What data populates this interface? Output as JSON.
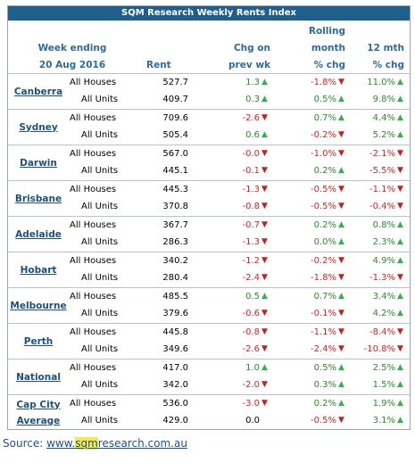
{
  "title": "SQM Research Weekly Rents Index",
  "headers": {
    "week_ending_1": "Week ending",
    "week_ending_2": "20 Aug 2016",
    "rent": "Rent",
    "chg_1": "Chg on",
    "chg_2": "prev wk",
    "rolling_1": "Rolling",
    "rolling_2": "month",
    "rolling_3": "% chg",
    "m12_1": "12 mth",
    "m12_2": "% chg"
  },
  "groups": [
    {
      "city": [
        "Canberra"
      ],
      "rows": [
        {
          "type": "All Houses",
          "rent": "527.7",
          "chg": "1.3",
          "chg_dir": "up",
          "roll": "-1.8%",
          "roll_dir": "down",
          "m12": "11.0%",
          "m12_dir": "up"
        },
        {
          "type": "All Units",
          "rent": "409.7",
          "chg": "0.3",
          "chg_dir": "up",
          "roll": "0.5%",
          "roll_dir": "up",
          "m12": "9.8%",
          "m12_dir": "up"
        }
      ]
    },
    {
      "city": [
        "Sydney"
      ],
      "rows": [
        {
          "type": "All Houses",
          "rent": "709.6",
          "chg": "-2.6",
          "chg_dir": "down",
          "roll": "0.7%",
          "roll_dir": "up",
          "m12": "4.4%",
          "m12_dir": "up"
        },
        {
          "type": "All Units",
          "rent": "505.4",
          "chg": "0.6",
          "chg_dir": "up",
          "roll": "-0.2%",
          "roll_dir": "down",
          "m12": "5.2%",
          "m12_dir": "up"
        }
      ]
    },
    {
      "city": [
        "Darwin"
      ],
      "rows": [
        {
          "type": "All Houses",
          "rent": "567.0",
          "chg": "-0.0",
          "chg_dir": "down",
          "roll": "-1.0%",
          "roll_dir": "down",
          "m12": "-2.1%",
          "m12_dir": "down"
        },
        {
          "type": "All Units",
          "rent": "445.1",
          "chg": "-0.1",
          "chg_dir": "down",
          "roll": "0.2%",
          "roll_dir": "up",
          "m12": "-5.5%",
          "m12_dir": "down"
        }
      ]
    },
    {
      "city": [
        "Brisbane"
      ],
      "rows": [
        {
          "type": "All Houses",
          "rent": "445.3",
          "chg": "-1.3",
          "chg_dir": "down",
          "roll": "-0.5%",
          "roll_dir": "down",
          "m12": "-1.1%",
          "m12_dir": "down"
        },
        {
          "type": "All Units",
          "rent": "370.8",
          "chg": "-0.8",
          "chg_dir": "down",
          "roll": "-0.5%",
          "roll_dir": "down",
          "m12": "-0.4%",
          "m12_dir": "down"
        }
      ]
    },
    {
      "city": [
        "Adelaide"
      ],
      "rows": [
        {
          "type": "All Houses",
          "rent": "367.7",
          "chg": "-0.7",
          "chg_dir": "down",
          "roll": "0.2%",
          "roll_dir": "up",
          "m12": "0.8%",
          "m12_dir": "up"
        },
        {
          "type": "All Units",
          "rent": "286.3",
          "chg": "-1.3",
          "chg_dir": "down",
          "roll": "0.0%",
          "roll_dir": "up",
          "m12": "2.3%",
          "m12_dir": "up"
        }
      ]
    },
    {
      "city": [
        "Hobart"
      ],
      "rows": [
        {
          "type": "All Houses",
          "rent": "340.2",
          "chg": "-1.2",
          "chg_dir": "down",
          "roll": "-0.2%",
          "roll_dir": "down",
          "m12": "4.9%",
          "m12_dir": "up"
        },
        {
          "type": "All Units",
          "rent": "280.4",
          "chg": "-2.4",
          "chg_dir": "down",
          "roll": "-1.8%",
          "roll_dir": "down",
          "m12": "-1.3%",
          "m12_dir": "down"
        }
      ]
    },
    {
      "city": [
        "Melbourne"
      ],
      "rows": [
        {
          "type": "All Houses",
          "rent": "485.5",
          "chg": "0.5",
          "chg_dir": "up",
          "roll": "0.7%",
          "roll_dir": "up",
          "m12": "3.4%",
          "m12_dir": "up"
        },
        {
          "type": "All Units",
          "rent": "379.6",
          "chg": "-0.6",
          "chg_dir": "down",
          "roll": "-0.1%",
          "roll_dir": "down",
          "m12": "4.2%",
          "m12_dir": "up"
        }
      ]
    },
    {
      "city": [
        "Perth"
      ],
      "rows": [
        {
          "type": "All Houses",
          "rent": "445.8",
          "chg": "-0.8",
          "chg_dir": "down",
          "roll": "-1.1%",
          "roll_dir": "down",
          "m12": "-8.4%",
          "m12_dir": "down"
        },
        {
          "type": "All Units",
          "rent": "349.6",
          "chg": "-2.6",
          "chg_dir": "down",
          "roll": "-2.4%",
          "roll_dir": "down",
          "m12": "-10.8%",
          "m12_dir": "down"
        }
      ]
    },
    {
      "city": [
        "National"
      ],
      "rows": [
        {
          "type": "All Houses",
          "rent": "417.0",
          "chg": "1.0",
          "chg_dir": "up",
          "roll": "0.5%",
          "roll_dir": "up",
          "m12": "2.5%",
          "m12_dir": "up"
        },
        {
          "type": "All Units",
          "rent": "342.0",
          "chg": "-2.0",
          "chg_dir": "down",
          "roll": "0.3%",
          "roll_dir": "up",
          "m12": "1.5%",
          "m12_dir": "up"
        }
      ]
    },
    {
      "city": [
        "Cap City",
        "Average"
      ],
      "rows": [
        {
          "type": "All Houses",
          "rent": "536.0",
          "chg": "-3.0",
          "chg_dir": "down",
          "roll": "0.2%",
          "roll_dir": "up",
          "m12": "1.9%",
          "m12_dir": "up"
        },
        {
          "type": "All Units",
          "rent": "429.0",
          "chg": "0.0",
          "chg_dir": "none",
          "roll": "-0.5%",
          "roll_dir": "down",
          "m12": "3.1%",
          "m12_dir": "up"
        }
      ]
    }
  ],
  "source": {
    "label": "Source: ",
    "link_pre": "www.",
    "link_hl": "sqm",
    "link_post": "research.com.au"
  },
  "colors": {
    "title_bg": "#1f5f8e",
    "header_text": "#2f6a9a",
    "city_text": "#1f4f80",
    "positive": "#2b8a2b",
    "negative": "#e01f1f",
    "arrow_up": "#33b14a",
    "arrow_down": "#c81e1e",
    "highlight": "#f4ec46"
  },
  "icons": {
    "up": "triangle-up-icon",
    "down": "triangle-down-icon"
  }
}
